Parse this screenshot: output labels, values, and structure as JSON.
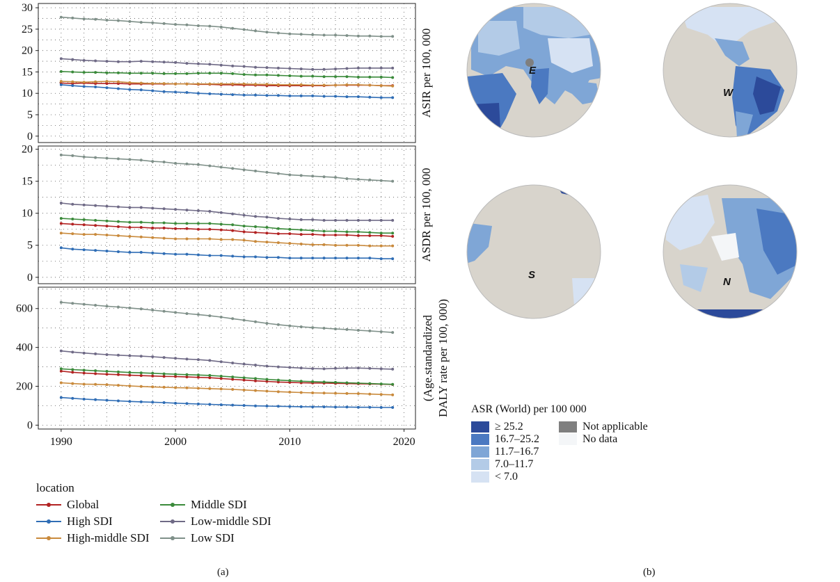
{
  "chart_data": [
    {
      "type": "line",
      "panel": "(a)",
      "xlim": [
        1988,
        2021
      ],
      "x_ticks": [
        1990,
        2000,
        2010,
        2020
      ],
      "x": [
        1990,
        1991,
        1992,
        1993,
        1994,
        1995,
        1996,
        1997,
        1998,
        1999,
        2000,
        2001,
        2002,
        2003,
        2004,
        2005,
        2006,
        2007,
        2008,
        2009,
        2010,
        2011,
        2012,
        2013,
        2014,
        2015,
        2016,
        2017,
        2018,
        2019
      ],
      "grid": true,
      "subplots": [
        {
          "ylabel": "ASIR per 100, 000",
          "ylim": [
            -1.5,
            31
          ],
          "y_ticks": [
            0,
            5,
            10,
            15,
            20,
            25,
            30
          ],
          "series": [
            {
              "name": "Global",
              "values": [
                12.4,
                12.3,
                12.4,
                12.3,
                12.3,
                12.3,
                12.2,
                12.2,
                12.2,
                12.2,
                12.2,
                12.2,
                12.1,
                12.1,
                12.0,
                12.0,
                11.9,
                11.9,
                11.8,
                11.8,
                11.8,
                11.8,
                11.8,
                11.8,
                11.9,
                11.9,
                11.9,
                11.9,
                11.8,
                11.8
              ]
            },
            {
              "name": "High SDI",
              "values": [
                12.0,
                11.8,
                11.6,
                11.5,
                11.3,
                11.1,
                10.9,
                10.8,
                10.6,
                10.4,
                10.3,
                10.2,
                10.0,
                9.9,
                9.8,
                9.7,
                9.6,
                9.6,
                9.5,
                9.5,
                9.4,
                9.4,
                9.4,
                9.3,
                9.3,
                9.2,
                9.2,
                9.1,
                9.0,
                9.0
              ]
            },
            {
              "name": "High-middle SDI",
              "values": [
                12.8,
                12.7,
                12.6,
                12.7,
                12.8,
                12.7,
                12.5,
                12.4,
                12.3,
                12.3,
                12.2,
                12.2,
                12.2,
                12.2,
                12.2,
                12.2,
                12.2,
                12.1,
                12.1,
                12.0,
                12.0,
                12.0,
                11.9,
                11.9,
                11.9,
                12.0,
                12.0,
                11.9,
                11.8,
                11.7
              ]
            },
            {
              "name": "Middle SDI",
              "values": [
                15.1,
                15.0,
                14.9,
                14.9,
                14.8,
                14.8,
                14.7,
                14.7,
                14.7,
                14.6,
                14.6,
                14.6,
                14.7,
                14.7,
                14.7,
                14.6,
                14.4,
                14.3,
                14.3,
                14.2,
                14.1,
                14.0,
                14.0,
                13.9,
                13.9,
                13.9,
                13.8,
                13.8,
                13.8,
                13.7
              ]
            },
            {
              "name": "Low-middle SDI",
              "values": [
                18.1,
                17.9,
                17.7,
                17.6,
                17.5,
                17.4,
                17.4,
                17.5,
                17.4,
                17.3,
                17.2,
                17.0,
                16.9,
                16.8,
                16.6,
                16.4,
                16.3,
                16.1,
                16.0,
                15.9,
                15.8,
                15.7,
                15.6,
                15.6,
                15.7,
                15.8,
                15.9,
                15.9,
                15.9,
                15.9
              ]
            },
            {
              "name": "Low SDI",
              "values": [
                27.8,
                27.6,
                27.4,
                27.3,
                27.1,
                27.0,
                26.8,
                26.6,
                26.5,
                26.3,
                26.1,
                26.0,
                25.8,
                25.7,
                25.5,
                25.2,
                24.9,
                24.6,
                24.3,
                24.1,
                23.9,
                23.8,
                23.7,
                23.6,
                23.6,
                23.5,
                23.4,
                23.4,
                23.3,
                23.3
              ]
            }
          ]
        },
        {
          "ylabel": "ASDR per 100, 000",
          "ylim": [
            -1,
            20.5
          ],
          "y_ticks": [
            0,
            5,
            10,
            15,
            20
          ],
          "series": [
            {
              "name": "Global",
              "values": [
                8.4,
                8.3,
                8.2,
                8.1,
                8.0,
                7.9,
                7.8,
                7.8,
                7.7,
                7.7,
                7.6,
                7.6,
                7.5,
                7.5,
                7.4,
                7.3,
                7.1,
                7.0,
                6.9,
                6.8,
                6.8,
                6.7,
                6.7,
                6.6,
                6.6,
                6.6,
                6.5,
                6.5,
                6.5,
                6.4
              ]
            },
            {
              "name": "High SDI",
              "values": [
                4.6,
                4.4,
                4.3,
                4.2,
                4.1,
                4.0,
                3.9,
                3.9,
                3.8,
                3.7,
                3.6,
                3.6,
                3.5,
                3.4,
                3.4,
                3.3,
                3.2,
                3.2,
                3.1,
                3.1,
                3.0,
                3.0,
                3.0,
                3.0,
                3.0,
                3.0,
                3.0,
                3.0,
                2.9,
                2.9
              ]
            },
            {
              "name": "High-middle SDI",
              "values": [
                6.9,
                6.8,
                6.7,
                6.7,
                6.6,
                6.5,
                6.4,
                6.3,
                6.2,
                6.1,
                6.0,
                6.0,
                6.0,
                6.0,
                5.9,
                5.9,
                5.8,
                5.6,
                5.5,
                5.4,
                5.3,
                5.2,
                5.1,
                5.1,
                5.0,
                5.0,
                5.0,
                4.9,
                4.9,
                4.9
              ]
            },
            {
              "name": "Middle SDI",
              "values": [
                9.2,
                9.1,
                9.0,
                8.9,
                8.8,
                8.7,
                8.6,
                8.6,
                8.5,
                8.5,
                8.4,
                8.4,
                8.4,
                8.4,
                8.3,
                8.2,
                8.0,
                7.9,
                7.8,
                7.6,
                7.5,
                7.4,
                7.3,
                7.2,
                7.2,
                7.1,
                7.1,
                7.0,
                6.9,
                6.9
              ]
            },
            {
              "name": "Low-middle SDI",
              "values": [
                11.6,
                11.4,
                11.3,
                11.2,
                11.1,
                11.0,
                10.9,
                10.9,
                10.8,
                10.7,
                10.6,
                10.5,
                10.4,
                10.3,
                10.1,
                9.9,
                9.7,
                9.5,
                9.4,
                9.2,
                9.1,
                9.0,
                9.0,
                8.9,
                8.9,
                8.9,
                8.9,
                8.9,
                8.9,
                8.9
              ]
            },
            {
              "name": "Low SDI",
              "values": [
                19.1,
                19.0,
                18.8,
                18.7,
                18.6,
                18.5,
                18.4,
                18.3,
                18.1,
                18.0,
                17.8,
                17.7,
                17.6,
                17.4,
                17.2,
                17.0,
                16.8,
                16.6,
                16.4,
                16.2,
                16.0,
                15.9,
                15.8,
                15.7,
                15.6,
                15.4,
                15.3,
                15.2,
                15.1,
                15.0
              ]
            }
          ]
        },
        {
          "ylabel": "(Age.standardized DALY rate per 100, 000)",
          "ylim": [
            -20,
            710
          ],
          "y_ticks": [
            0,
            200,
            400,
            600
          ],
          "series": [
            {
              "name": "Global",
              "values": [
                278,
                272,
                268,
                265,
                262,
                260,
                257,
                255,
                253,
                251,
                250,
                248,
                246,
                244,
                240,
                236,
                232,
                228,
                225,
                222,
                220,
                218,
                217,
                216,
                215,
                214,
                213,
                212,
                211,
                209
              ]
            },
            {
              "name": "High SDI",
              "values": [
                142,
                138,
                134,
                131,
                128,
                125,
                122,
                120,
                118,
                116,
                113,
                111,
                109,
                107,
                105,
                103,
                101,
                99,
                98,
                97,
                96,
                95,
                94,
                94,
                93,
                93,
                92,
                92,
                91,
                91
              ]
            },
            {
              "name": "High-middle SDI",
              "values": [
                218,
                214,
                211,
                210,
                208,
                205,
                202,
                199,
                197,
                195,
                193,
                192,
                190,
                188,
                186,
                184,
                181,
                178,
                175,
                172,
                170,
                168,
                166,
                165,
                164,
                163,
                162,
                160,
                158,
                156
              ]
            },
            {
              "name": "Middle SDI",
              "values": [
                290,
                286,
                283,
                280,
                277,
                274,
                271,
                269,
                267,
                264,
                262,
                260,
                258,
                256,
                252,
                248,
                244,
                240,
                236,
                232,
                229,
                226,
                224,
                222,
                220,
                218,
                216,
                214,
                212,
                210
              ]
            },
            {
              "name": "Low-middle SDI",
              "values": [
                382,
                376,
                371,
                367,
                363,
                360,
                357,
                355,
                352,
                348,
                344,
                340,
                337,
                333,
                326,
                320,
                314,
                309,
                304,
                300,
                297,
                294,
                291,
                290,
                292,
                294,
                294,
                292,
                290,
                288
              ]
            },
            {
              "name": "Low SDI",
              "values": [
                632,
                627,
                622,
                617,
                612,
                608,
                603,
                598,
                592,
                586,
                580,
                574,
                569,
                563,
                556,
                548,
                540,
                532,
                524,
                517,
                511,
                506,
                502,
                499,
                495,
                492,
                488,
                485,
                481,
                477
              ]
            }
          ]
        }
      ]
    },
    {
      "type": "map",
      "panel": "(b)",
      "globes": [
        "E",
        "W",
        "S",
        "N"
      ],
      "legend_title": "ASR (World) per 100 000",
      "legend": [
        {
          "label": "≥ 25.2",
          "color": "#2c4a9a"
        },
        {
          "label": "16.7–25.2",
          "color": "#4b79c1"
        },
        {
          "label": "11.7–16.7",
          "color": "#7fa6d6"
        },
        {
          "label": "7.0–11.7",
          "color": "#b3cbe7"
        },
        {
          "label": "< 7.0",
          "color": "#d6e2f3"
        }
      ],
      "legend_extra": [
        {
          "label": "Not applicable",
          "color": "#7f7f7f"
        },
        {
          "label": "No data",
          "color": "#f4f6f8"
        }
      ]
    }
  ],
  "legend_a": {
    "title": "location",
    "items": [
      {
        "name": "Global",
        "color": "#b22222"
      },
      {
        "name": "High SDI",
        "color": "#2f6db5"
      },
      {
        "name": "High-middle SDI",
        "color": "#c98a3c"
      },
      {
        "name": "Middle SDI",
        "color": "#3a8a3a"
      },
      {
        "name": "Low-middle SDI",
        "color": "#6f6a86"
      },
      {
        "name": "Low SDI",
        "color": "#7f9089"
      }
    ]
  },
  "colors": {
    "ocean": "#d8d4cc",
    "frame": "#222222"
  },
  "panel_labels": {
    "a": "(a)",
    "b": "(b)"
  }
}
